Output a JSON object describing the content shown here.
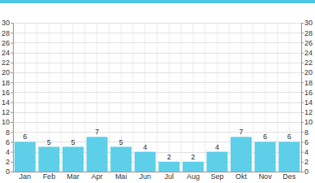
{
  "chart_data": {
    "type": "bar",
    "categories": [
      "Jan",
      "Feb",
      "Mar",
      "Apr",
      "Mai",
      "Jun",
      "Jul",
      "Aug",
      "Sep",
      "Okt",
      "Nov",
      "Des"
    ],
    "values": [
      6,
      5,
      5,
      7,
      5,
      4,
      2,
      2,
      4,
      7,
      6,
      6
    ],
    "color": "#5dcfe8",
    "ylim": [
      0,
      30
    ],
    "yticks": [
      0,
      2,
      4,
      6,
      8,
      10,
      12,
      14,
      16,
      18,
      20,
      22,
      24,
      26,
      28,
      30
    ],
    "grid": true,
    "data_labels": true
  }
}
